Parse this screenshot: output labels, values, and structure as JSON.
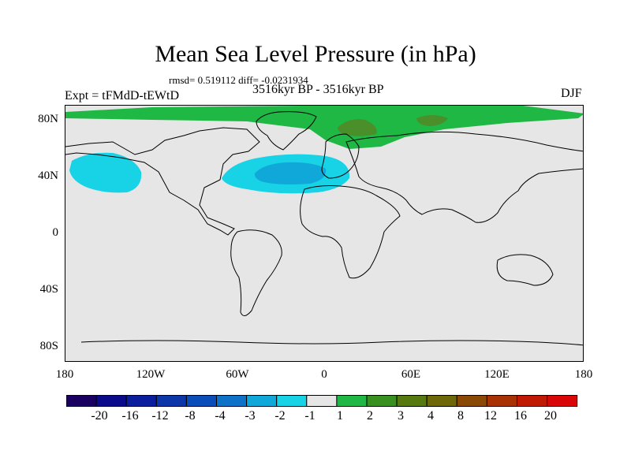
{
  "figure": {
    "title": "Mean Sea Level Pressure (in hPa)",
    "stats": "rmsd= 0.519112 diff= -0.0231934",
    "period": "3516kyr BP - 3516kyr BP",
    "experiment": "Expt = tFMdD-tEWtD",
    "season": "DJF"
  },
  "map": {
    "lat_ticks": [
      "80N",
      "40N",
      "0",
      "40S",
      "80S"
    ],
    "lon_ticks": [
      "180",
      "120W",
      "60W",
      "0",
      "60E",
      "120E",
      "180"
    ],
    "background_color": "#e6e6e6",
    "anomaly_regions": [
      {
        "name": "arctic-positive",
        "level": "1 to 2",
        "color": "#1fb845"
      },
      {
        "name": "arctic-positive-core",
        "level": "3 to 4",
        "color": "#4a8f2a"
      },
      {
        "name": "north-pacific-negative",
        "level": "-2 to -1",
        "color": "#18d2e6"
      },
      {
        "name": "north-atlantic-negative",
        "level": "-2 to -1",
        "color": "#18d2e6"
      },
      {
        "name": "north-atlantic-negative-core",
        "level": "-3 to -2",
        "color": "#0fa8d8"
      }
    ]
  },
  "colorbar": {
    "labels": [
      "-20",
      "-16",
      "-12",
      "-8",
      "-4",
      "-3",
      "-2",
      "-1",
      "1",
      "2",
      "3",
      "4",
      "8",
      "12",
      "16",
      "20"
    ],
    "colors": [
      "#1a0060",
      "#0a0a8a",
      "#0a1e9e",
      "#0d36a8",
      "#0a4cba",
      "#0d72c8",
      "#0fa8d8",
      "#18d2e6",
      "#e6e6e6",
      "#1fb845",
      "#38901e",
      "#567a10",
      "#6e6808",
      "#8a4a06",
      "#a83204",
      "#c01a04",
      "#d80606"
    ]
  }
}
